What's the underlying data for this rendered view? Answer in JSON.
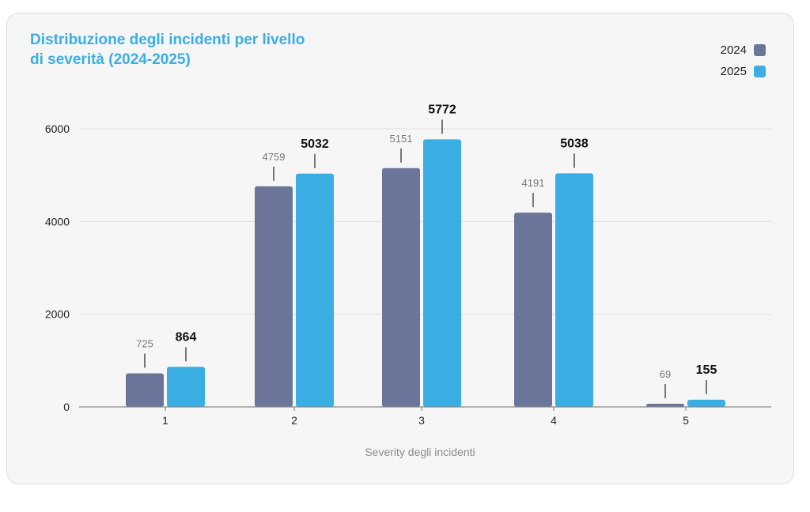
{
  "chart_data": {
    "type": "bar",
    "title": "Distribuzione degli incidenti per livello\ndi severità (2024-2025)",
    "categories": [
      "1",
      "2",
      "3",
      "4",
      "5"
    ],
    "series": [
      {
        "name": "2024",
        "color": "#6b7599",
        "values": [
          725,
          4759,
          5151,
          4191,
          69
        ]
      },
      {
        "name": "2025",
        "color": "#3aaee3",
        "values": [
          864,
          5032,
          5772,
          5038,
          155
        ]
      }
    ],
    "xlabel": "Severity degli incidenti",
    "ylabel": "",
    "ylim": [
      0,
      6000
    ],
    "yticks": [
      0,
      2000,
      4000,
      6000
    ],
    "grid": true,
    "legend": "top-right"
  }
}
